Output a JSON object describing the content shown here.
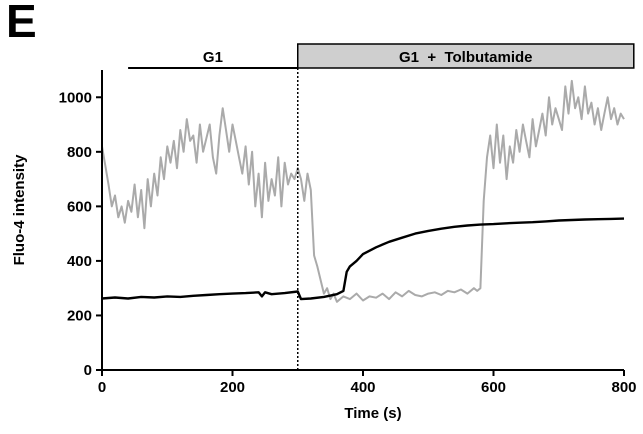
{
  "panel_label": "E",
  "conditions": [
    {
      "label": "G1",
      "style": "line",
      "x_start": 40,
      "x_end": 300
    },
    {
      "label": "G1  +  Tolbutamide",
      "style": "box",
      "x_start": 300,
      "x_end": 815
    }
  ],
  "chart_data": {
    "type": "line",
    "xlabel": "Time (s)",
    "ylabel": "Fluo-4 intensity",
    "xlim": [
      0,
      800
    ],
    "ylim": [
      0,
      1100
    ],
    "xticks": [
      0,
      200,
      400,
      600,
      800
    ],
    "yticks": [
      0,
      200,
      400,
      600,
      800,
      1000
    ],
    "vertical_marker_x": 300,
    "series": [
      {
        "color": "#aaaaaa",
        "x": [
          0,
          5,
          10,
          15,
          20,
          25,
          30,
          35,
          40,
          45,
          50,
          55,
          60,
          65,
          70,
          75,
          80,
          85,
          90,
          95,
          100,
          105,
          110,
          115,
          120,
          125,
          130,
          135,
          140,
          145,
          150,
          155,
          160,
          165,
          170,
          175,
          180,
          185,
          190,
          195,
          200,
          205,
          210,
          215,
          220,
          225,
          230,
          235,
          240,
          245,
          250,
          255,
          260,
          265,
          270,
          275,
          280,
          285,
          290,
          295,
          300,
          305,
          310,
          315,
          320,
          325,
          330,
          335,
          340,
          345,
          350,
          355,
          360,
          370,
          380,
          390,
          400,
          410,
          420,
          430,
          440,
          450,
          460,
          470,
          480,
          490,
          500,
          510,
          520,
          530,
          540,
          550,
          560,
          570,
          575,
          580,
          585,
          590,
          595,
          600,
          605,
          610,
          615,
          620,
          625,
          630,
          635,
          640,
          645,
          650,
          655,
          660,
          665,
          670,
          675,
          680,
          685,
          690,
          695,
          700,
          705,
          710,
          715,
          720,
          725,
          730,
          735,
          740,
          745,
          750,
          755,
          760,
          765,
          770,
          775,
          780,
          785,
          790,
          795,
          800
        ],
        "values": [
          820,
          750,
          680,
          600,
          640,
          560,
          600,
          540,
          620,
          580,
          680,
          560,
          660,
          520,
          700,
          600,
          720,
          640,
          780,
          700,
          820,
          760,
          840,
          740,
          880,
          800,
          920,
          840,
          860,
          760,
          900,
          800,
          850,
          900,
          780,
          720,
          860,
          960,
          880,
          800,
          900,
          840,
          780,
          720,
          820,
          680,
          800,
          600,
          720,
          560,
          760,
          620,
          700,
          640,
          780,
          600,
          760,
          680,
          720,
          700,
          740,
          700,
          620,
          720,
          660,
          420,
          380,
          330,
          280,
          300,
          260,
          280,
          250,
          270,
          260,
          280,
          255,
          270,
          265,
          280,
          260,
          285,
          270,
          290,
          275,
          270,
          280,
          285,
          275,
          290,
          285,
          295,
          280,
          300,
          290,
          300,
          620,
          780,
          860,
          740,
          900,
          760,
          860,
          700,
          820,
          760,
          880,
          800,
          900,
          840,
          780,
          920,
          820,
          880,
          940,
          860,
          1000,
          900,
          960,
          920,
          880,
          1040,
          940,
          1060,
          960,
          1000,
          920,
          1040,
          940,
          980,
          900,
          960,
          880,
          940,
          1000,
          920,
          960,
          900,
          940,
          920
        ]
      },
      {
        "color": "#000000",
        "x": [
          0,
          20,
          40,
          60,
          80,
          100,
          120,
          140,
          160,
          180,
          200,
          220,
          240,
          245,
          250,
          260,
          280,
          300,
          305,
          320,
          340,
          360,
          370,
          375,
          380,
          390,
          400,
          420,
          440,
          460,
          480,
          500,
          520,
          540,
          560,
          580,
          600,
          620,
          640,
          660,
          680,
          700,
          720,
          740,
          760,
          780,
          800
        ],
        "values": [
          262,
          266,
          262,
          268,
          266,
          270,
          268,
          272,
          275,
          278,
          280,
          282,
          285,
          270,
          285,
          278,
          282,
          288,
          260,
          262,
          268,
          278,
          290,
          360,
          380,
          400,
          425,
          450,
          470,
          485,
          500,
          510,
          518,
          525,
          530,
          533,
          535,
          538,
          540,
          542,
          545,
          548,
          550,
          552,
          553,
          554,
          555
        ]
      }
    ]
  }
}
